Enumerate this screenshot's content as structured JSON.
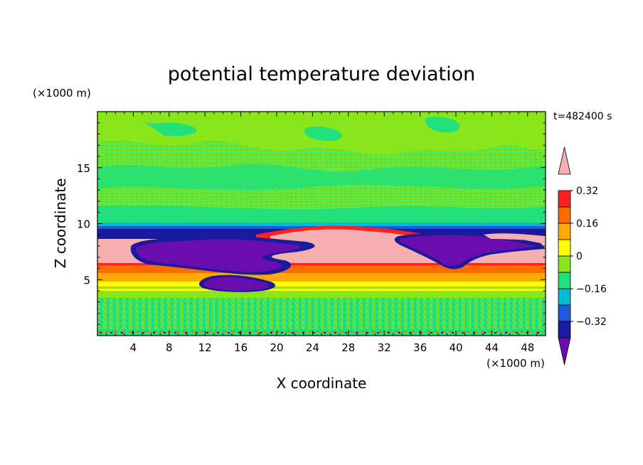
{
  "chart_data": {
    "type": "heatmap",
    "title": "potential temperature deviation",
    "xlabel": "X coordinate",
    "ylabel": "Z coordinate",
    "x_unit": "(×1000 m)",
    "y_unit": "(×1000 m)",
    "time_label": "t=482400 s",
    "xlim": [
      0,
      50
    ],
    "ylim": [
      0,
      20
    ],
    "x_ticks": [
      4,
      8,
      12,
      16,
      20,
      24,
      28,
      32,
      36,
      40,
      44,
      48
    ],
    "y_ticks": [
      5,
      10,
      15
    ],
    "colorbar": {
      "levels": [
        -0.48,
        -0.4,
        -0.32,
        -0.24,
        -0.16,
        -0.08,
        0,
        0.08,
        0.16,
        0.24,
        0.32,
        0.4
      ],
      "tick_labels": [
        "0.32",
        "0.16",
        "0",
        "−0.16",
        "−0.32"
      ],
      "tick_values": [
        0.32,
        0.16,
        0,
        -0.16,
        -0.32
      ],
      "colors": [
        "#6a0dad",
        "#1a1a9e",
        "#1e5bd6",
        "#00bcd4",
        "#22e07a",
        "#88e61a",
        "#ffff00",
        "#ffaa00",
        "#ff6a00",
        "#ff2020",
        "#f7b0b0"
      ],
      "extend": "both"
    },
    "regions": [
      {
        "level": "near_zero",
        "color": "#88e61a",
        "x": [
          0,
          50
        ],
        "z": [
          10.5,
          20
        ]
      },
      {
        "level": "slightly_negative",
        "color": "#22e07a",
        "x": [
          0,
          50
        ],
        "z": [
          10,
          19
        ]
      },
      {
        "level": "strong_negative_layer",
        "color": "#1a1a9e",
        "x": [
          0,
          50
        ],
        "z": [
          8.8,
          9.4
        ]
      },
      {
        "level": "max_positive",
        "color": "#f7b0b0",
        "x": [
          0,
          50
        ],
        "z": [
          6.5,
          8.8
        ]
      },
      {
        "level": "min_negative",
        "color": "#6a0dad",
        "x": [
          4,
          22
        ],
        "z": [
          5.8,
          8.7
        ]
      },
      {
        "level": "min_negative",
        "color": "#6a0dad",
        "x": [
          35,
          43
        ],
        "z": [
          6.5,
          8.9
        ]
      },
      {
        "level": "positive_band",
        "color": "#ff6a00",
        "x": [
          0,
          50
        ],
        "z": [
          6.0,
          6.5
        ]
      },
      {
        "level": "positive_band",
        "color": "#ffaa00",
        "x": [
          0,
          50
        ],
        "z": [
          5.2,
          6.0
        ]
      },
      {
        "level": "small_positive_band",
        "color": "#ffff00",
        "x": [
          0,
          50
        ],
        "z": [
          4.0,
          5.2
        ]
      },
      {
        "level": "near_zero_mixed",
        "color": "#22e07a",
        "x": [
          0,
          50
        ],
        "z": [
          0,
          3.5
        ]
      }
    ]
  }
}
